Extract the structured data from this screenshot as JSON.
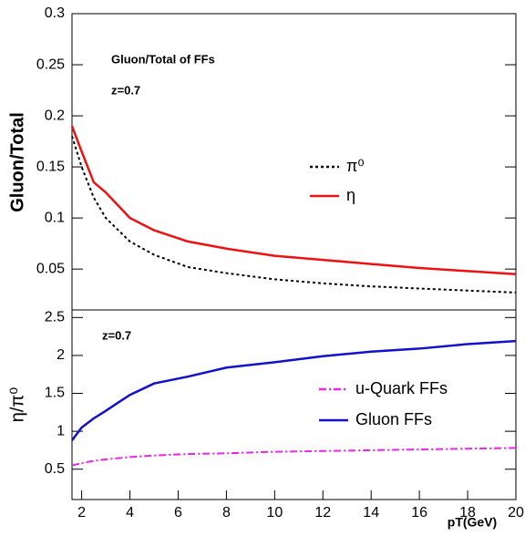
{
  "chart_data": [
    {
      "type": "line",
      "y_label": "Gluon/Total",
      "annotations": [
        "Gluon/Total of FFs",
        "z=0.7"
      ],
      "x": [
        1.6,
        2,
        2.5,
        3,
        4,
        5,
        6.4,
        8,
        10,
        12,
        14,
        16,
        18,
        20
      ],
      "series": [
        {
          "name": "π⁰",
          "color": "#000000",
          "linestyle": "dotted",
          "values": [
            0.18,
            0.15,
            0.12,
            0.1,
            0.077,
            0.064,
            0.052,
            0.046,
            0.04,
            0.036,
            0.033,
            0.031,
            0.029,
            0.027
          ]
        },
        {
          "name": "η",
          "color": "#ee1111",
          "linestyle": "solid",
          "values": [
            0.19,
            0.165,
            0.135,
            0.125,
            0.1,
            0.088,
            0.077,
            0.07,
            0.063,
            0.059,
            0.055,
            0.051,
            0.048,
            0.045
          ]
        }
      ],
      "xlim": [
        1.6,
        20
      ],
      "ylim": [
        0.01,
        0.3
      ],
      "yticks": [
        0.05,
        0.1,
        0.15,
        0.2,
        0.25,
        0.3
      ]
    },
    {
      "type": "line",
      "y_label": "η/π⁰",
      "x_label": "pT(GeV)",
      "annotations": [
        "z=0.7"
      ],
      "x": [
        1.6,
        2,
        2.5,
        3,
        4,
        5,
        6.4,
        8,
        10,
        12,
        14,
        16,
        18,
        20
      ],
      "series": [
        {
          "name": "u-Quark FFs",
          "color": "#ee22ee",
          "linestyle": "dashdot",
          "values": [
            0.55,
            0.58,
            0.61,
            0.63,
            0.66,
            0.68,
            0.7,
            0.71,
            0.73,
            0.74,
            0.75,
            0.76,
            0.77,
            0.78
          ]
        },
        {
          "name": "Gluon FFs",
          "color": "#1111cc",
          "linestyle": "solid",
          "values": [
            0.88,
            1.05,
            1.17,
            1.27,
            1.48,
            1.63,
            1.72,
            1.84,
            1.91,
            1.99,
            2.05,
            2.09,
            2.15,
            2.19
          ]
        }
      ],
      "xlim": [
        1.6,
        20
      ],
      "ylim": [
        0.1,
        2.6
      ],
      "xticks": [
        2,
        4,
        6,
        8,
        10,
        12,
        14,
        16,
        18,
        20
      ],
      "yticks": [
        0.5,
        1,
        1.5,
        2,
        2.5
      ]
    }
  ]
}
